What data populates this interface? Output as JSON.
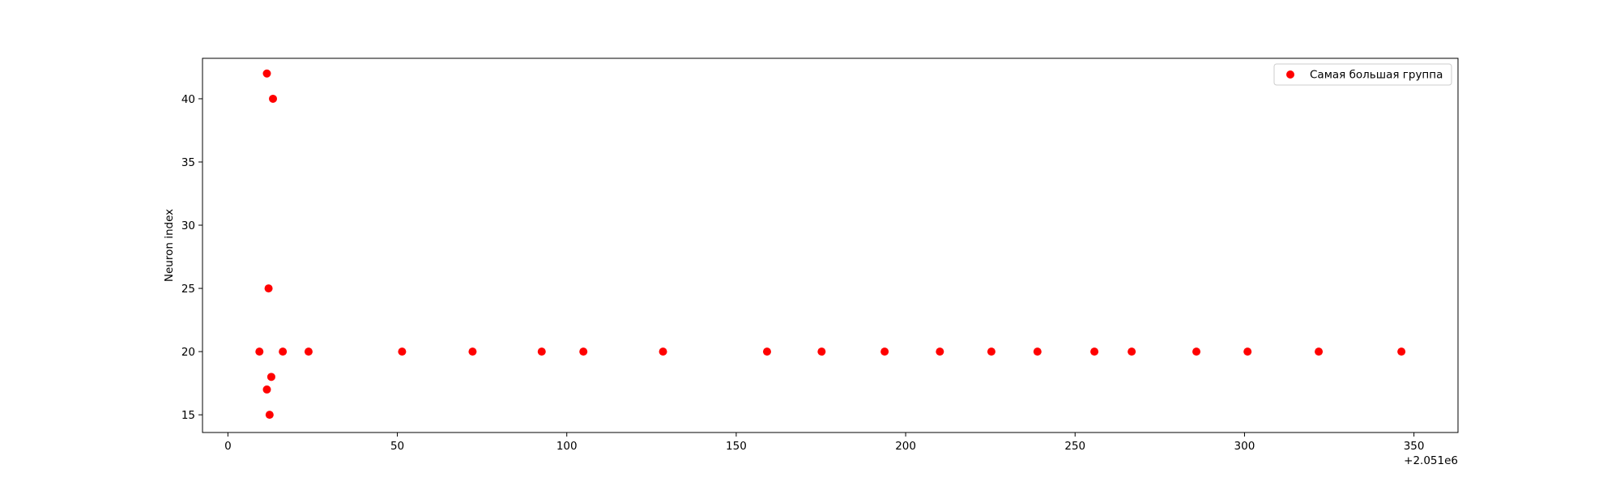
{
  "chart_data": {
    "type": "scatter",
    "title": "",
    "xlabel": "",
    "ylabel": "Neuron index",
    "x_offset_label": "+2.051e6",
    "xlim": [
      -7.5,
      363
    ],
    "ylim": [
      13.6,
      43.2
    ],
    "x_ticks": [
      0,
      50,
      100,
      150,
      200,
      250,
      300,
      350
    ],
    "x_tick_labels": [
      "0",
      "50",
      "100",
      "150",
      "200",
      "250",
      "300",
      "350"
    ],
    "y_ticks": [
      15,
      20,
      25,
      30,
      35,
      40
    ],
    "y_tick_labels": [
      "15",
      "20",
      "25",
      "30",
      "35",
      "40"
    ],
    "grid": false,
    "legend_position": "top-right",
    "colors": {
      "series": "#ff0000",
      "axes": "#000000",
      "legend_border": "#cccccc"
    },
    "series": [
      {
        "name": "Самая большая группа",
        "marker": "circle",
        "points": [
          {
            "x": 9.3,
            "y": 20
          },
          {
            "x": 11.5,
            "y": 42
          },
          {
            "x": 11.5,
            "y": 17
          },
          {
            "x": 12.0,
            "y": 25
          },
          {
            "x": 12.3,
            "y": 15
          },
          {
            "x": 12.8,
            "y": 18
          },
          {
            "x": 13.3,
            "y": 40
          },
          {
            "x": 16.2,
            "y": 20
          },
          {
            "x": 23.8,
            "y": 20
          },
          {
            "x": 51.4,
            "y": 20
          },
          {
            "x": 72.2,
            "y": 20
          },
          {
            "x": 92.6,
            "y": 20
          },
          {
            "x": 104.9,
            "y": 20
          },
          {
            "x": 128.4,
            "y": 20
          },
          {
            "x": 159.1,
            "y": 20
          },
          {
            "x": 175.2,
            "y": 20
          },
          {
            "x": 193.8,
            "y": 20
          },
          {
            "x": 210.1,
            "y": 20
          },
          {
            "x": 225.3,
            "y": 20
          },
          {
            "x": 238.9,
            "y": 20
          },
          {
            "x": 255.7,
            "y": 20
          },
          {
            "x": 266.7,
            "y": 20
          },
          {
            "x": 285.8,
            "y": 20
          },
          {
            "x": 300.9,
            "y": 20
          },
          {
            "x": 321.9,
            "y": 20
          },
          {
            "x": 346.3,
            "y": 20
          }
        ]
      }
    ]
  }
}
